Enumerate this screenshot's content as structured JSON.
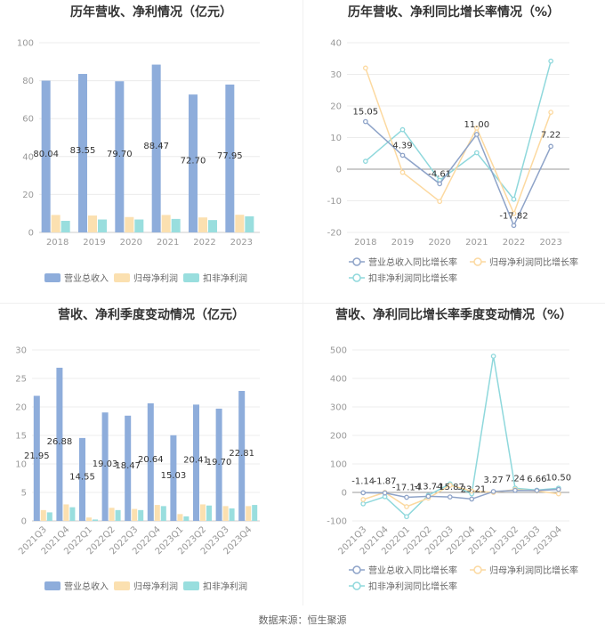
{
  "source": "数据来源：恒生聚源",
  "colors": {
    "revenue": "#8eaddb",
    "parent_profit": "#fbe0b0",
    "deducted_profit": "#99dede",
    "rev_line": "#8ea3c8",
    "parent_line": "#fcd9a0",
    "deducted_line": "#8fd8dc"
  },
  "chart_data": [
    {
      "type": "bar",
      "title": "历年营收、净利情况（亿元）",
      "categories": [
        "2018",
        "2019",
        "2020",
        "2021",
        "2022",
        "2023"
      ],
      "ylim": [
        0,
        100
      ],
      "yticks": [
        "0",
        "20",
        "40",
        "60",
        "80",
        "100"
      ],
      "series": [
        {
          "name": "营业总收入",
          "values": [
            80.04,
            83.55,
            79.7,
            88.47,
            72.7,
            77.95
          ]
        },
        {
          "name": "归母净利润",
          "values": [
            9.2,
            8.9,
            8.1,
            9.2,
            7.9,
            9.3
          ]
        },
        {
          "name": "扣非净利润",
          "values": [
            6.1,
            6.8,
            6.8,
            7.1,
            6.5,
            8.5
          ]
        }
      ],
      "data_labels": [
        "80.04",
        "83.55",
        "79.70",
        "88.47",
        "72.70",
        "77.95"
      ],
      "legend": [
        "营业总收入",
        "归母净利润",
        "扣非净利润"
      ]
    },
    {
      "type": "line",
      "title": "历年营收、净利同比增长率情况（%）",
      "categories": [
        "2018",
        "2019",
        "2020",
        "2021",
        "2022",
        "2023"
      ],
      "ylim": [
        -20,
        40
      ],
      "yticks": [
        "-20",
        "-10",
        "0",
        "10",
        "20",
        "30",
        "40"
      ],
      "series": [
        {
          "name": "营业总收入同比增长率",
          "values": [
            15.05,
            4.39,
            -4.61,
            11.0,
            -17.82,
            7.22
          ]
        },
        {
          "name": "归母净利润同比增长率",
          "values": [
            32,
            -1,
            -10.2,
            13,
            -14,
            18
          ]
        },
        {
          "name": "扣非净利润同比增长率",
          "values": [
            2.5,
            12.5,
            -3.5,
            5.2,
            -9.5,
            34.2
          ]
        }
      ],
      "data_labels": [
        "15.05",
        "4.39",
        "-4.61",
        "11.00",
        "-17.82",
        "7.22"
      ],
      "legend": [
        "营业总收入同比增长率",
        "归母净利润同比增长率",
        "扣非净利润同比增长率"
      ]
    },
    {
      "type": "bar",
      "title": "营收、净利季度变动情况（亿元）",
      "categories": [
        "2021Q3",
        "2021Q4",
        "2022Q1",
        "2022Q2",
        "2022Q3",
        "2022Q4",
        "2023Q1",
        "2023Q2",
        "2023Q3",
        "2023Q4"
      ],
      "ylim": [
        0,
        30
      ],
      "yticks": [
        "0",
        "5",
        "10",
        "15",
        "20",
        "25",
        "30"
      ],
      "series": [
        {
          "name": "营业总收入",
          "values": [
            21.95,
            26.88,
            14.55,
            19.03,
            18.47,
            20.64,
            15.03,
            20.41,
            19.7,
            22.81
          ]
        },
        {
          "name": "归母净利润",
          "values": [
            1.9,
            2.9,
            0.6,
            2.3,
            2.1,
            2.8,
            1.2,
            2.9,
            2.6,
            2.6
          ]
        },
        {
          "name": "扣非净利润",
          "values": [
            1.5,
            2.4,
            0.25,
            1.9,
            1.9,
            2.6,
            0.8,
            2.7,
            2.2,
            2.8
          ]
        }
      ],
      "data_labels": [
        "21.95",
        "26.88",
        "14.55",
        "19.03",
        "18.47",
        "20.64",
        "15.03",
        "20.41",
        "19.70",
        "22.81"
      ],
      "legend": [
        "营业总收入",
        "归母净利润",
        "扣非净利润"
      ]
    },
    {
      "type": "line",
      "title": "营收、净利同比增长率季度变动情况（%）",
      "categories": [
        "2021Q3",
        "2021Q4",
        "2022Q1",
        "2022Q2",
        "2022Q3",
        "2022Q4",
        "2023Q1",
        "2023Q2",
        "2023Q3",
        "2023Q4"
      ],
      "ylim": [
        -100,
        500
      ],
      "yticks": [
        "-100",
        "0",
        "100",
        "200",
        "300",
        "400",
        "500"
      ],
      "series": [
        {
          "name": "营业总收入同比增长率",
          "values": [
            -1.14,
            -1.87,
            -17.14,
            -13.74,
            -15.87,
            -23.21,
            3.27,
            7.24,
            6.66,
            10.5
          ]
        },
        {
          "name": "归母净利润同比增长率",
          "values": [
            -25,
            0,
            -50,
            -20,
            25,
            5,
            0,
            10,
            5,
            -5
          ]
        },
        {
          "name": "扣非净利润同比增长率",
          "values": [
            -40,
            -15,
            -85,
            -10,
            30,
            -5,
            478,
            15,
            8,
            15
          ]
        }
      ],
      "data_labels": [
        "-1.14",
        "-1.87",
        "-17.14",
        "-13.74",
        "-15.87",
        "-23.21",
        "3.27",
        "7.24",
        "6.66",
        "10.50"
      ],
      "legend": [
        "营业总收入同比增长率",
        "归母净利润同比增长率",
        "扣非净利润同比增长率"
      ]
    }
  ]
}
